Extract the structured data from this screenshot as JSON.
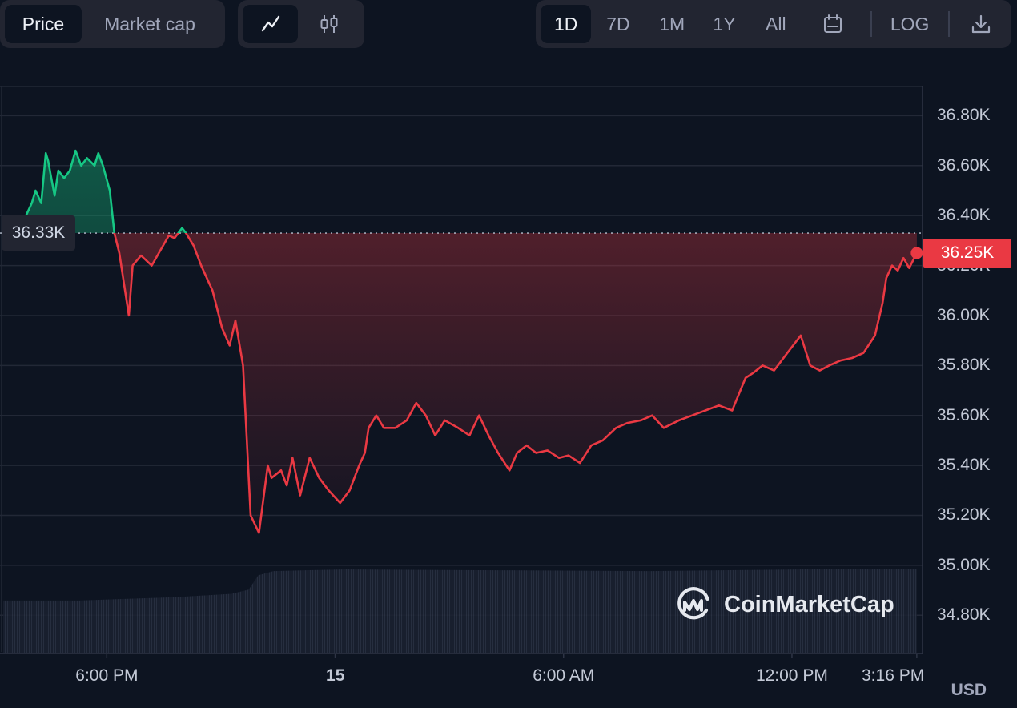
{
  "toolbar": {
    "metric_tabs": [
      {
        "label": "Price",
        "active": true
      },
      {
        "label": "Market cap",
        "active": false
      }
    ],
    "chart_types": [
      {
        "icon": "line-chart-icon",
        "active": true
      },
      {
        "icon": "candlestick-icon",
        "active": false
      }
    ],
    "ranges": [
      {
        "label": "1D",
        "active": true
      },
      {
        "label": "7D",
        "active": false
      },
      {
        "label": "1M",
        "active": false
      },
      {
        "label": "1Y",
        "active": false
      },
      {
        "label": "All",
        "active": false
      }
    ],
    "calendar_icon": "calendar-icon",
    "log_label": "LOG",
    "download_icon": "download-icon"
  },
  "chart_data": {
    "type": "line",
    "currency": "USD",
    "ylim": [
      34.65,
      36.92
    ],
    "y_unit": "K",
    "y_ticks": [
      "36.80K",
      "36.60K",
      "36.40K",
      "36.20K",
      "36.00K",
      "35.80K",
      "35.60K",
      "35.40K",
      "35.20K",
      "35.00K",
      "34.80K"
    ],
    "y_tick_values": [
      36.8,
      36.6,
      36.4,
      36.2,
      36.0,
      35.8,
      35.6,
      35.4,
      35.2,
      35.0,
      34.8
    ],
    "x_ticks": [
      "6:00 PM",
      "15",
      "6:00 AM",
      "12:00 PM",
      "3:16 PM"
    ],
    "x_tick_hours": [
      2.72,
      8.72,
      14.72,
      20.72,
      24.0
    ],
    "x_range_hours": [
      0,
      24.15
    ],
    "reference_price": 36.33,
    "reference_label": "36.33K",
    "current_price": 36.25,
    "current_label": "36.25K",
    "up_color": "#16c784",
    "down_color": "#ea3943",
    "grid": true,
    "watermark": "CoinMarketCap",
    "series": [
      {
        "x": [
          0,
          0.32,
          0.6,
          0.75,
          0.85,
          1.0,
          1.12,
          1.18,
          1.24,
          1.35,
          1.45,
          1.6,
          1.75,
          1.9,
          2.05,
          2.2,
          2.4,
          2.5,
          2.62,
          2.8,
          2.92,
          3.05,
          3.3,
          3.4,
          3.62,
          3.9,
          4.2,
          4.35,
          4.5,
          4.7,
          4.8,
          5.0,
          5.2,
          5.5,
          5.75,
          5.95,
          6.1,
          6.3,
          6.5,
          6.72,
          6.95,
          7.05,
          7.3,
          7.45,
          7.6,
          7.8,
          8.05,
          8.3,
          8.55,
          8.85,
          9.1,
          9.35,
          9.5,
          9.6,
          9.8,
          10.0,
          10.3,
          10.6,
          10.85,
          11.1,
          11.35,
          11.6,
          11.95,
          12.25,
          12.5,
          12.75,
          13.0,
          13.3,
          13.5,
          13.75,
          14.0,
          14.3,
          14.6,
          14.85,
          15.15,
          15.45,
          15.75,
          16.1,
          16.4,
          16.75,
          17.05,
          17.35,
          17.75,
          18.1,
          18.45,
          18.8,
          19.15,
          19.5,
          19.7,
          19.95,
          20.25,
          20.6,
          20.95,
          21.2,
          21.45,
          21.7,
          22.0,
          22.3,
          22.6,
          22.9,
          23.1,
          23.2,
          23.35,
          23.5,
          23.65,
          23.8,
          23.9,
          24.0
        ],
        "y": [
          36.3,
          36.32,
          36.4,
          36.45,
          36.5,
          36.45,
          36.65,
          36.62,
          36.57,
          36.48,
          36.58,
          36.55,
          36.58,
          36.66,
          36.6,
          36.63,
          36.6,
          36.65,
          36.6,
          36.5,
          36.33,
          36.25,
          36.0,
          36.2,
          36.24,
          36.2,
          36.28,
          36.32,
          36.31,
          36.35,
          36.33,
          36.28,
          36.2,
          36.1,
          35.95,
          35.88,
          35.98,
          35.8,
          35.2,
          35.13,
          35.4,
          35.35,
          35.38,
          35.32,
          35.43,
          35.28,
          35.43,
          35.35,
          35.3,
          35.25,
          35.3,
          35.4,
          35.45,
          35.55,
          35.6,
          35.55,
          35.55,
          35.58,
          35.65,
          35.6,
          35.52,
          35.58,
          35.55,
          35.52,
          35.6,
          35.52,
          35.45,
          35.38,
          35.45,
          35.48,
          35.45,
          35.46,
          35.43,
          35.44,
          35.41,
          35.48,
          35.5,
          35.55,
          35.57,
          35.58,
          35.6,
          35.55,
          35.58,
          35.6,
          35.62,
          35.64,
          35.62,
          35.75,
          35.77,
          35.8,
          35.78,
          35.85,
          35.92,
          35.8,
          35.78,
          35.8,
          35.82,
          35.83,
          35.85,
          35.92,
          36.05,
          36.15,
          36.2,
          36.18,
          36.23,
          36.19,
          36.22,
          36.25
        ]
      },
      {
        "name": "volume",
        "type": "area",
        "x": [
          0,
          2.0,
          4.5,
          6.0,
          6.45,
          6.7,
          7.1,
          9.0,
          13.0,
          17.0,
          21.0,
          24.0
        ],
        "y": [
          0.62,
          0.62,
          0.66,
          0.7,
          0.75,
          0.92,
          0.97,
          0.99,
          0.98,
          0.97,
          0.99,
          1.0
        ]
      }
    ]
  }
}
